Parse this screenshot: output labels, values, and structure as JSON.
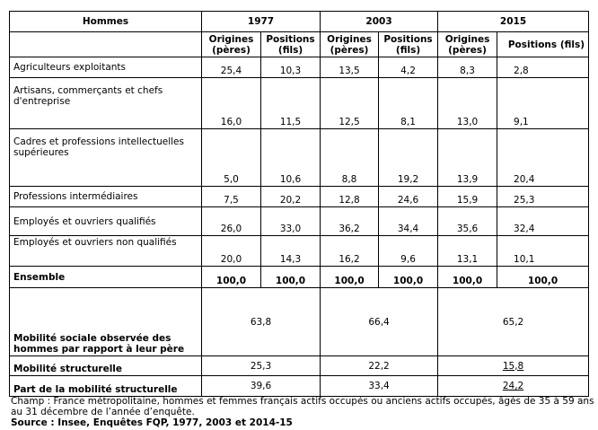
{
  "header": {
    "title": "Hommes",
    "years": [
      "1977",
      "2003",
      "2015"
    ],
    "sub": [
      "Origines (pères)",
      "Positions (fils)",
      "Origines (pères)",
      "Positions (fils)",
      "Origines (pères)",
      "Positions (fils)"
    ]
  },
  "rows": [
    {
      "label": "Agriculteurs exploitants",
      "values": [
        "25,4",
        "10,3",
        "13,5",
        "4,2",
        "8,3",
        "2,8"
      ]
    },
    {
      "label": "Artisans, commerçants et chefs d'entreprise",
      "values": [
        "16,0",
        "11,5",
        "12,5",
        "8,1",
        "13,0",
        "9,1"
      ]
    },
    {
      "label": "Cadres et professions intellectuelles supérieures",
      "values": [
        "5,0",
        "10,6",
        "8,8",
        "19,2",
        "13,9",
        "20,4"
      ]
    },
    {
      "label": "Professions intermédiaires",
      "values": [
        "7,5",
        "20,2",
        "12,8",
        "24,6",
        "15,9",
        "25,3"
      ]
    },
    {
      "label": "Employés et ouvriers qualifiés",
      "values": [
        "26,0",
        "33,0",
        "36,2",
        "34,4",
        "35,6",
        "32,4"
      ]
    },
    {
      "label": "Employés et ouvriers non qualifiés",
      "values": [
        "20,0",
        "14,3",
        "16,2",
        "9,6",
        "13,1",
        "10,1"
      ]
    },
    {
      "label": "Ensemble",
      "values": [
        "100,0",
        "100,0",
        "100,0",
        "100,0",
        "100,0",
        "100,0"
      ]
    }
  ],
  "summary": [
    {
      "label": "Mobilité sociale observée des hommes par rapport à leur père",
      "values": [
        "63,8",
        "66,4",
        "65,2"
      ]
    },
    {
      "label": "Mobilité structurelle",
      "values": [
        "25,3",
        "22,2",
        "15,8"
      ]
    },
    {
      "label": "Part de la mobilité structurelle",
      "values": [
        "39,6",
        "33,4",
        "24,2"
      ]
    }
  ],
  "footer": {
    "champ": "Champ : France métropolitaine, hommes et femmes français actifs occupés ou anciens actifs occupés, âgés de 35 à 59 ans au 31 décembre de l’année d’enquête.",
    "source": "Source : Insee, Enquêtes FQP, 1977, 2003 et 2014-15"
  }
}
